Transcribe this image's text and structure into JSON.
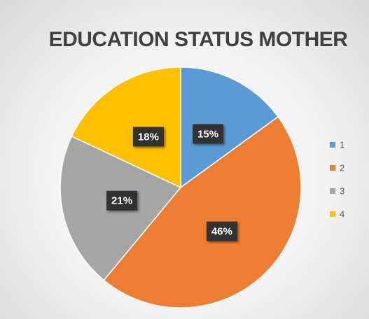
{
  "chart_data": {
    "type": "pie",
    "title": "EDUCATION STATUS MOTHER",
    "categories": [
      "1",
      "2",
      "3",
      "4"
    ],
    "values": [
      15,
      46,
      21,
      18
    ],
    "value_labels": [
      "15%",
      "46%",
      "21%",
      "18%"
    ],
    "colors": [
      "#5b9bd5",
      "#ed7d31",
      "#a5a5a5",
      "#ffc000"
    ],
    "legend": "right"
  }
}
